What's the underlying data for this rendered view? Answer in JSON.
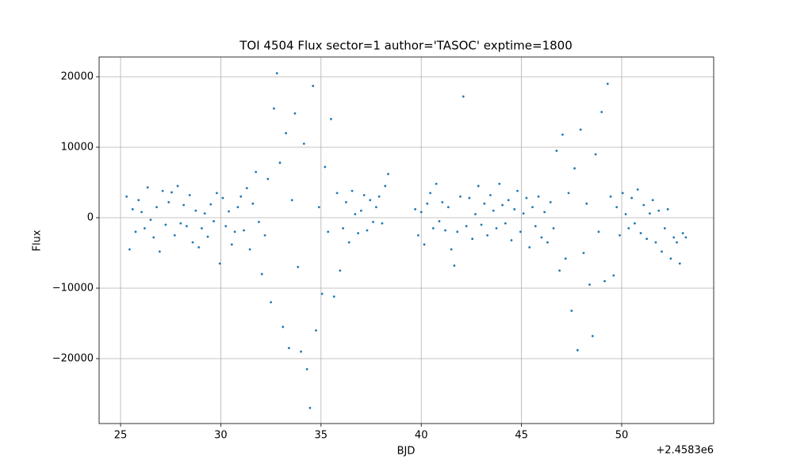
{
  "chart_data": {
    "type": "scatter",
    "title": "TOI 4504 Flux sector=1 author='TASOC' exptime=1800",
    "x_label": "BJD",
    "y_label": "Flux",
    "x_offset_label": "+2.4583e6",
    "xlim": [
      23.93,
      54.59
    ],
    "ylim": [
      -29213,
      22809
    ],
    "xticks": [
      25,
      30,
      35,
      40,
      45,
      50
    ],
    "yticks": [
      {
        "value": -20000,
        "label": "−20000"
      },
      {
        "value": -10000,
        "label": "−10000"
      },
      0,
      10000,
      20000
    ],
    "grid": true,
    "series": [
      {
        "name": "Flux",
        "color": "#1f77b4",
        "x": [
          25.3,
          25.45,
          25.6,
          25.75,
          25.9,
          26.05,
          26.2,
          26.35,
          26.5,
          26.65,
          26.8,
          26.95,
          27.1,
          27.25,
          27.4,
          27.55,
          27.7,
          27.85,
          28.0,
          28.15,
          28.3,
          28.45,
          28.6,
          28.75,
          28.9,
          29.05,
          29.2,
          29.35,
          29.5,
          29.65,
          29.8,
          29.95,
          30.1,
          30.25,
          30.4,
          30.55,
          30.7,
          30.85,
          31.0,
          31.15,
          31.3,
          31.45,
          31.6,
          31.75,
          31.9,
          32.05,
          32.2,
          32.35,
          32.5,
          32.65,
          32.8,
          32.95,
          33.1,
          33.25,
          33.4,
          33.55,
          33.7,
          33.85,
          34.0,
          34.15,
          34.3,
          34.45,
          34.6,
          34.75,
          34.9,
          35.05,
          35.2,
          35.35,
          35.5,
          35.65,
          35.8,
          35.95,
          36.1,
          36.25,
          36.4,
          36.55,
          36.7,
          36.85,
          37.0,
          37.15,
          37.3,
          37.45,
          37.6,
          37.75,
          37.9,
          38.05,
          38.2,
          38.35,
          39.7,
          39.85,
          40.0,
          40.15,
          40.3,
          40.45,
          40.6,
          40.75,
          40.9,
          41.05,
          41.2,
          41.35,
          41.5,
          41.65,
          41.8,
          41.95,
          42.1,
          42.25,
          42.4,
          42.55,
          42.7,
          42.85,
          43.0,
          43.15,
          43.3,
          43.45,
          43.6,
          43.75,
          43.9,
          44.05,
          44.2,
          44.35,
          44.5,
          44.65,
          44.8,
          44.95,
          45.1,
          45.25,
          45.4,
          45.55,
          45.7,
          45.85,
          46.0,
          46.15,
          46.3,
          46.45,
          46.6,
          46.75,
          46.9,
          47.05,
          47.2,
          47.35,
          47.5,
          47.65,
          47.8,
          47.95,
          48.1,
          48.25,
          48.4,
          48.55,
          48.7,
          48.85,
          49.0,
          49.15,
          49.3,
          49.45,
          49.6,
          49.75,
          49.9,
          50.05,
          50.2,
          50.35,
          50.5,
          50.65,
          50.8,
          50.95,
          51.1,
          51.25,
          51.4,
          51.55,
          51.7,
          51.85,
          52.0,
          52.15,
          52.3,
          52.45,
          52.6,
          52.75,
          52.9,
          53.05,
          53.2
        ],
        "values": [
          3000,
          -4500,
          1200,
          -2000,
          2500,
          800,
          -1500,
          4300,
          -300,
          -2800,
          1500,
          -4800,
          3800,
          -1000,
          2200,
          3600,
          -2500,
          4500,
          -800,
          1800,
          -1200,
          3200,
          -3500,
          1000,
          -4200,
          -1500,
          600,
          -2700,
          1900,
          -500,
          3500,
          -6500,
          2800,
          -1200,
          900,
          -3800,
          -2000,
          1500,
          3000,
          -1800,
          4200,
          -4500,
          2000,
          6500,
          -600,
          -8000,
          -2500,
          5500,
          -12000,
          15500,
          20500,
          7800,
          -15500,
          12000,
          -18500,
          2500,
          14800,
          -7000,
          -19000,
          10500,
          -21500,
          -27000,
          18700,
          -16000,
          1500,
          -10800,
          7200,
          -2000,
          14000,
          -11200,
          3500,
          -7500,
          -1500,
          2200,
          -3500,
          3800,
          500,
          -2200,
          1000,
          3200,
          -1800,
          2500,
          -600,
          1500,
          3000,
          -800,
          4500,
          6200,
          1200,
          -2500,
          800,
          -3800,
          2000,
          3500,
          -1500,
          4800,
          -500,
          2200,
          -1800,
          1500,
          -4500,
          -6800,
          -2000,
          3000,
          17200,
          -1200,
          2800,
          -3000,
          500,
          4500,
          -1000,
          2000,
          -2500,
          3200,
          1000,
          -1500,
          4800,
          1800,
          -800,
          2500,
          -3200,
          1200,
          3800,
          -2000,
          600,
          2800,
          -4200,
          1500,
          -1200,
          3000,
          -2800,
          800,
          -3500,
          2200,
          -1500,
          9500,
          -7500,
          11800,
          -5800,
          3500,
          -13200,
          7000,
          -18800,
          12500,
          -5000,
          2000,
          -9500,
          -16800,
          9000,
          -2000,
          15000,
          -9000,
          19000,
          3000,
          -8200,
          1500,
          -2500,
          3500,
          500,
          -1500,
          2800,
          -800,
          4000,
          -2200,
          1800,
          -3000,
          600,
          2500,
          -3500,
          1000,
          -4800,
          -1500,
          1200,
          -5800,
          -2800,
          -3500,
          -6500,
          -2200,
          -2800
        ]
      }
    ]
  }
}
